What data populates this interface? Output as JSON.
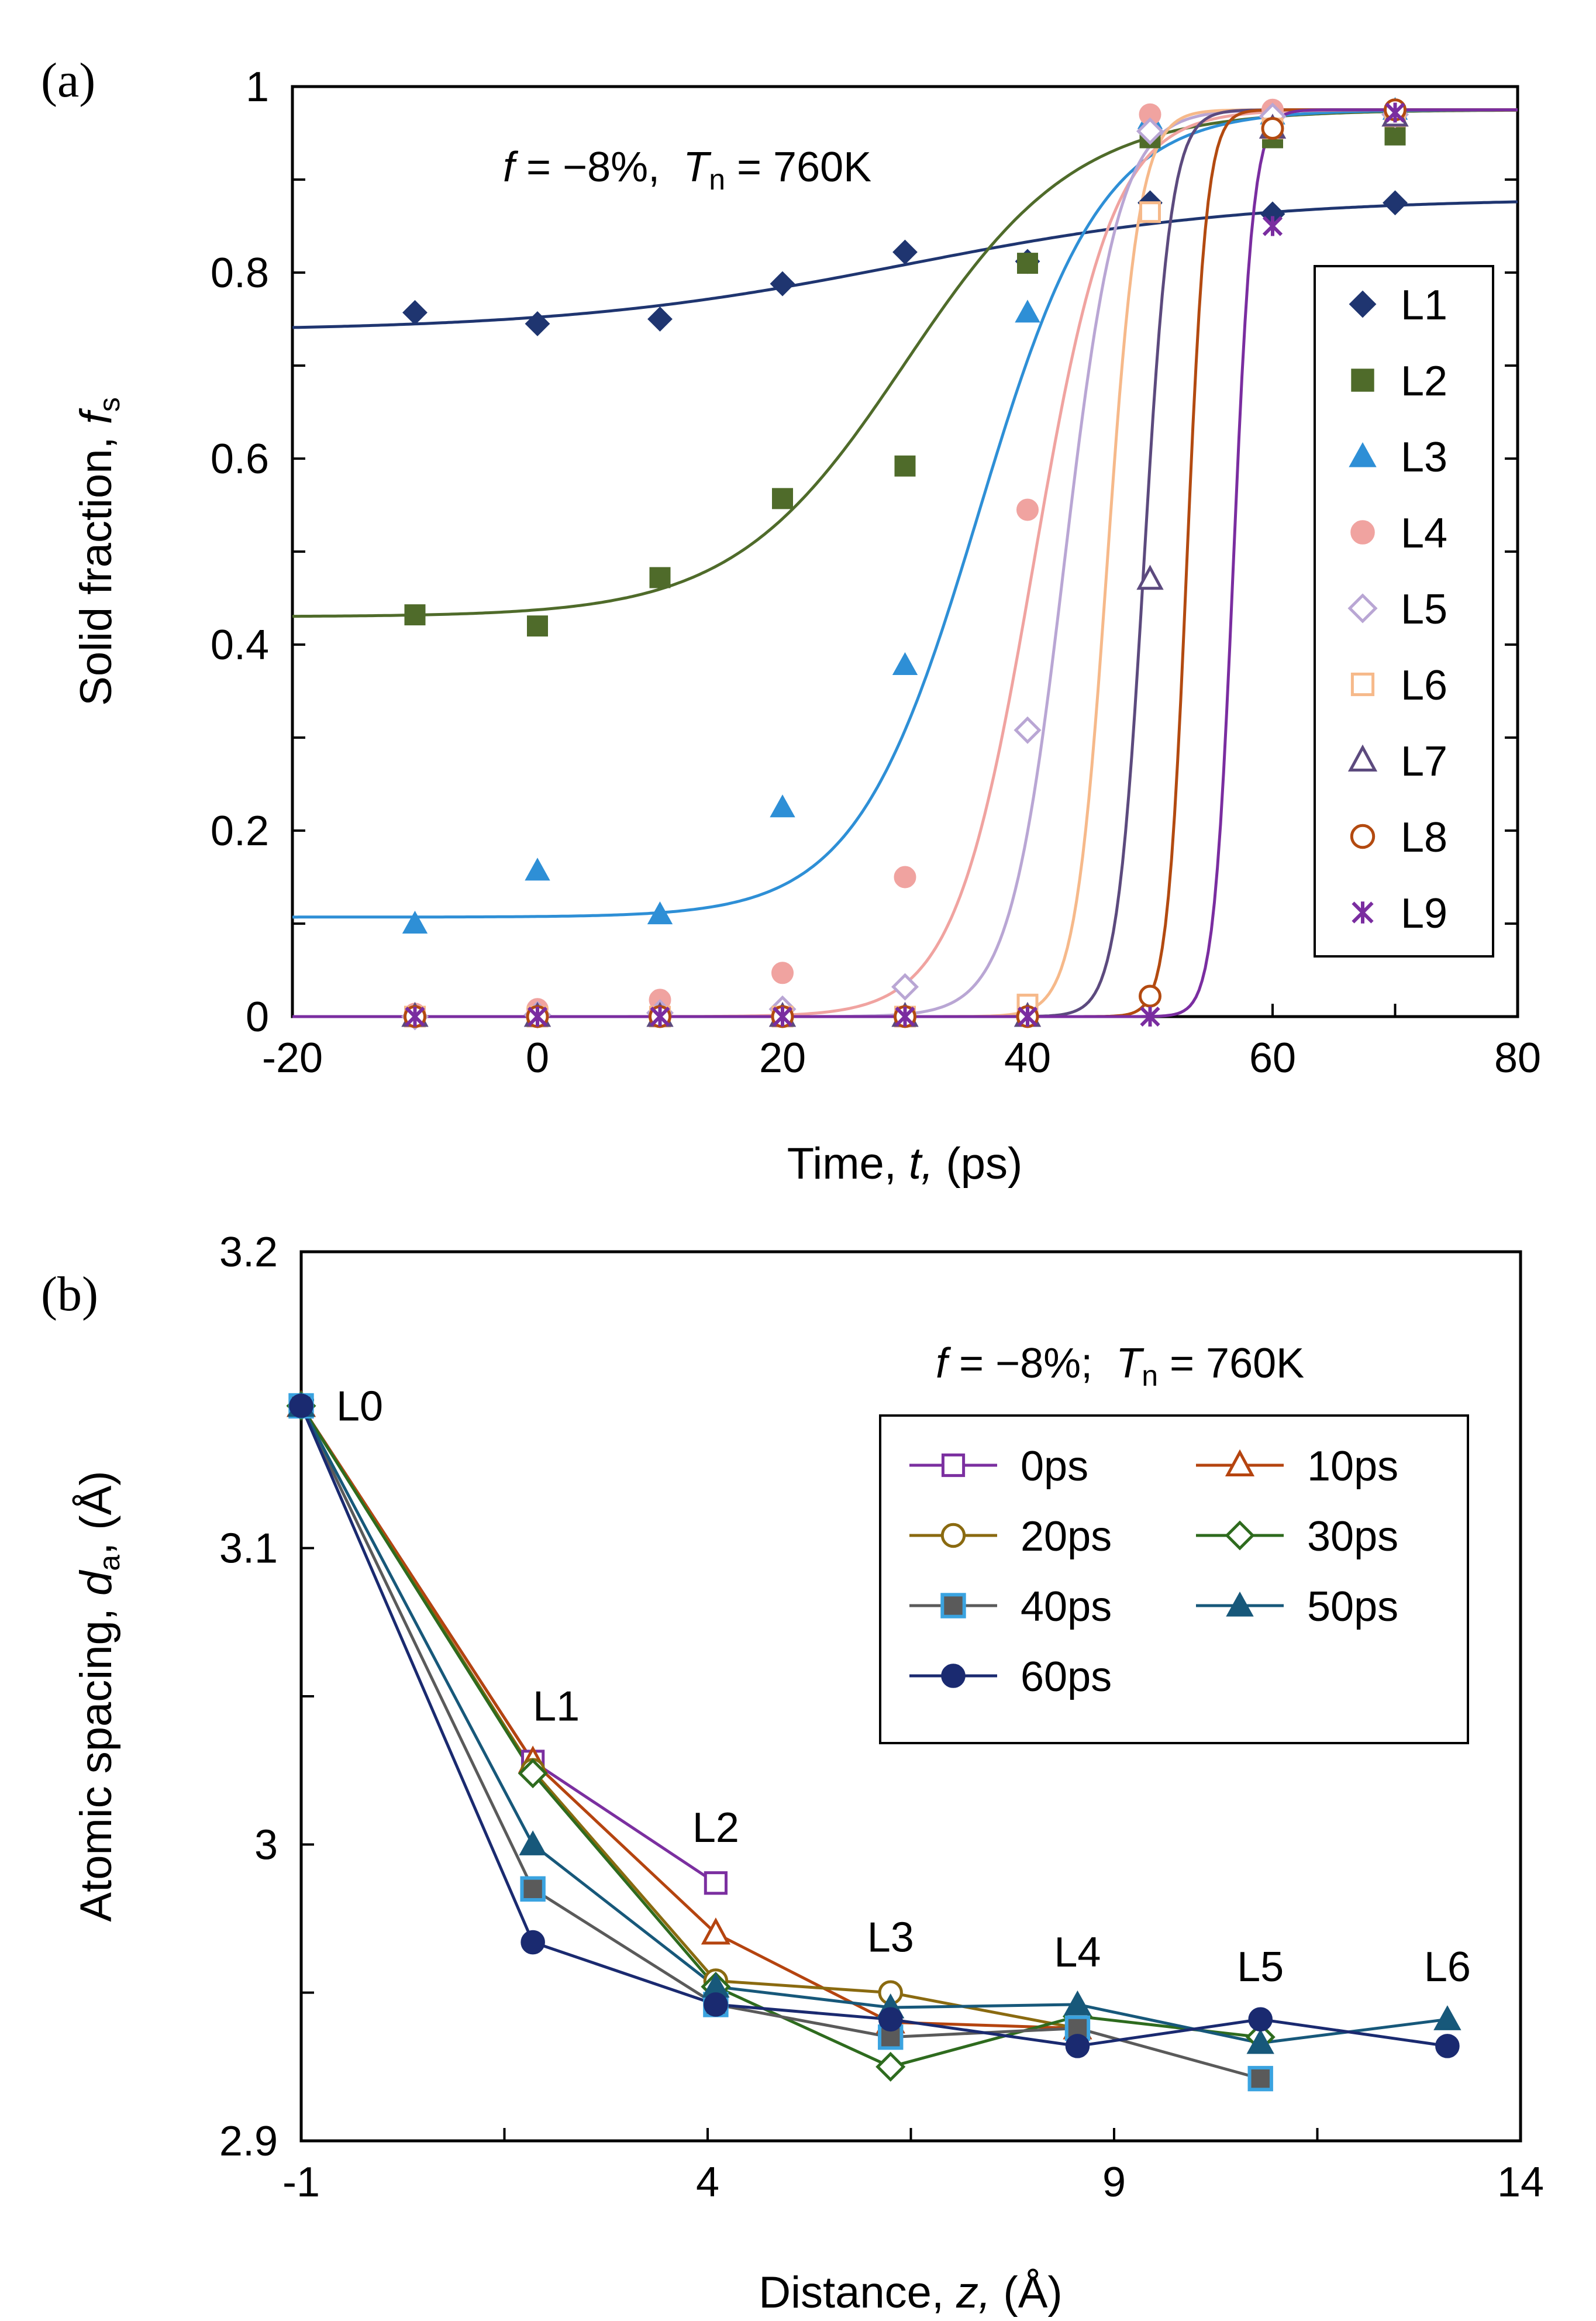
{
  "chart_data": [
    {
      "id": "a",
      "type": "scatter",
      "panel_label": "(a)",
      "annotation": {
        "f_symbol": "f",
        "f_text": " = −8%,  ",
        "t_symbol": "T",
        "t_sub": "n",
        "t_text": " = 760K"
      },
      "xlabel": {
        "prefix": "Time, ",
        "var": "t,",
        "suffix": " (ps)"
      },
      "ylabel": {
        "prefix": "Solid fraction, ",
        "var": "f",
        "sub": "s"
      },
      "xlim": [
        -20,
        80
      ],
      "ylim": [
        0,
        1
      ],
      "xticks": [
        "-20",
        "0",
        "20",
        "40",
        "60",
        "80"
      ],
      "yticks": [
        "0",
        "0.2",
        "0.4",
        "0.6",
        "0.8",
        "1"
      ],
      "legend_position": "right",
      "series": [
        {
          "name": "L1",
          "color": "#1f3570",
          "marker": "diamond",
          "x": [
            -10,
            0,
            10,
            20,
            30,
            40,
            50,
            60,
            70
          ],
          "values": [
            0.757,
            0.745,
            0.75,
            0.788,
            0.822,
            0.812,
            0.875,
            0.863,
            0.875
          ],
          "fit": {
            "lo": 0.737,
            "hi": 0.88,
            "t0": 30,
            "w": 14
          }
        },
        {
          "name": "L2",
          "color": "#4f6b2a",
          "marker": "square",
          "x": [
            -10,
            0,
            10,
            20,
            30,
            40,
            50,
            60,
            70
          ],
          "values": [
            0.432,
            0.42,
            0.472,
            0.557,
            0.592,
            0.81,
            0.945,
            0.945,
            0.948
          ],
          "fit": {
            "lo": 0.43,
            "hi": 0.975,
            "t0": 30,
            "w": 7
          }
        },
        {
          "name": "L3",
          "color": "#2e8fd6",
          "marker": "triangle",
          "x": [
            -10,
            0,
            10,
            20,
            30,
            40,
            50,
            60,
            70
          ],
          "values": [
            0.1,
            0.157,
            0.11,
            0.225,
            0.378,
            0.757,
            0.965,
            0.97,
            0.975
          ],
          "fit": {
            "lo": 0.107,
            "hi": 0.975,
            "t0": 36,
            "w": 5
          }
        },
        {
          "name": "L4",
          "color": "#f0a3a0",
          "marker": "circle",
          "x": [
            -10,
            0,
            10,
            20,
            30,
            40,
            50,
            60,
            70
          ],
          "values": [
            0.003,
            0.008,
            0.018,
            0.047,
            0.15,
            0.545,
            0.97,
            0.975,
            0.975
          ],
          "fit": {
            "lo": 0.0,
            "hi": 0.975,
            "t0": 40.5,
            "w": 3.2
          }
        },
        {
          "name": "L5",
          "color": "#b9a6d4",
          "marker": "diamond-open",
          "x": [
            -10,
            0,
            10,
            20,
            30,
            40,
            50,
            60,
            70
          ],
          "values": [
            0.0,
            0.002,
            0.004,
            0.008,
            0.032,
            0.308,
            0.952,
            0.968,
            0.97
          ],
          "fit": {
            "lo": 0.0,
            "hi": 0.975,
            "t0": 43,
            "w": 2.2
          }
        },
        {
          "name": "L6",
          "color": "#f6b98a",
          "marker": "square-open",
          "x": [
            -10,
            0,
            10,
            20,
            30,
            40,
            50,
            60,
            70
          ],
          "values": [
            0.0,
            0.0,
            0.0,
            0.0,
            0.0,
            0.013,
            0.865,
            0.955,
            0.968
          ],
          "fit": {
            "lo": 0.0,
            "hi": 0.975,
            "t0": 46.5,
            "w": 1.3
          }
        },
        {
          "name": "L7",
          "color": "#5c4a7e",
          "marker": "triangle-open",
          "x": [
            -10,
            0,
            10,
            20,
            30,
            40,
            50,
            60,
            70
          ],
          "values": [
            0.0,
            0.0,
            0.0,
            0.0,
            0.0,
            0.0,
            0.47,
            0.955,
            0.968
          ],
          "fit": {
            "lo": 0.0,
            "hi": 0.975,
            "t0": 49.5,
            "w": 1.1
          }
        },
        {
          "name": "L8",
          "color": "#b34a10",
          "marker": "circle-open",
          "x": [
            -10,
            0,
            10,
            20,
            30,
            40,
            50,
            60,
            70
          ],
          "values": [
            0.0,
            0.0,
            0.0,
            0.0,
            0.0,
            0.0,
            0.022,
            0.955,
            0.975
          ],
          "fit": {
            "lo": 0.0,
            "hi": 0.975,
            "t0": 53,
            "w": 0.8
          }
        },
        {
          "name": "L9",
          "color": "#7a2da0",
          "marker": "x",
          "x": [
            -10,
            0,
            10,
            20,
            30,
            40,
            50,
            60,
            70
          ],
          "values": [
            0.0,
            0.0,
            0.0,
            0.0,
            0.0,
            0.0,
            0.0,
            0.85,
            0.972
          ],
          "fit": {
            "lo": 0.0,
            "hi": 0.975,
            "t0": 56.8,
            "w": 0.8
          }
        }
      ]
    },
    {
      "id": "b",
      "type": "line",
      "panel_label": "(b)",
      "annotation": {
        "f_symbol": "f",
        "f_text": " = −8%;  ",
        "t_symbol": "T",
        "t_sub": "n",
        "t_text": " = 760K"
      },
      "xlabel": {
        "prefix": "Distance, ",
        "var": "z,",
        "suffix": " (Å)"
      },
      "ylabel": {
        "prefix": "Atomic spacing, ",
        "var": "d",
        "sub": "a",
        "suffix": ", (Å)"
      },
      "xlim": [
        -1,
        14
      ],
      "ylim": [
        2.9,
        3.2
      ],
      "xticks": [
        "-1",
        "4",
        "9",
        "14"
      ],
      "yticks": [
        "2.9",
        "3",
        "3.1",
        "3.2"
      ],
      "legend_position": "top-right",
      "layer_labels": [
        {
          "text": "L0",
          "x": -1.0,
          "y": 3.148
        },
        {
          "text": "L1",
          "x": 1.85,
          "y": 3.03
        },
        {
          "text": "L2",
          "x": 4.1,
          "y": 2.99
        },
        {
          "text": "L3",
          "x": 6.25,
          "y": 2.953
        },
        {
          "text": "L4",
          "x": 8.55,
          "y": 2.948
        },
        {
          "text": "L5",
          "x": 10.8,
          "y": 2.943
        },
        {
          "text": "L6",
          "x": 13.1,
          "y": 2.943
        }
      ],
      "series": [
        {
          "name": "0ps",
          "color": "#7b2fa0",
          "marker": "square-open",
          "x": [
            -1.0,
            1.85,
            4.1
          ],
          "values": [
            3.148,
            3.028,
            2.987
          ]
        },
        {
          "name": "10ps",
          "color": "#b5440f",
          "marker": "triangle-open",
          "x": [
            -1.0,
            1.85,
            4.1,
            6.25,
            8.55
          ],
          "values": [
            3.148,
            3.028,
            2.97,
            2.94,
            2.938
          ]
        },
        {
          "name": "20ps",
          "color": "#8a6a10",
          "marker": "circle-open",
          "x": [
            -1.0,
            1.85,
            4.1,
            6.25,
            8.55
          ],
          "values": [
            3.148,
            3.025,
            2.954,
            2.95,
            2.938
          ]
        },
        {
          "name": "30ps",
          "color": "#2e6b1e",
          "marker": "diamond-open",
          "x": [
            -1.0,
            1.85,
            4.1,
            6.25,
            8.55,
            10.8
          ],
          "values": [
            3.148,
            3.024,
            2.952,
            2.925,
            2.942,
            2.935
          ]
        },
        {
          "name": "40ps",
          "color": "#5a5a5a",
          "marker": "square-filled",
          "x": [
            -1.0,
            1.85,
            4.1,
            6.25,
            8.55,
            10.8
          ],
          "values": [
            3.148,
            2.985,
            2.946,
            2.935,
            2.938,
            2.921
          ]
        },
        {
          "name": "50ps",
          "color": "#17587a",
          "marker": "triangle",
          "x": [
            -1.0,
            1.85,
            4.1,
            6.25,
            8.55,
            10.8,
            13.1
          ],
          "values": [
            3.148,
            3.0,
            2.952,
            2.945,
            2.946,
            2.933,
            2.941
          ]
        },
        {
          "name": "60ps",
          "color": "#1a2a70",
          "marker": "circle",
          "x": [
            -1.0,
            1.85,
            4.1,
            6.25,
            8.55,
            10.8,
            13.1
          ],
          "values": [
            3.148,
            2.967,
            2.946,
            2.941,
            2.932,
            2.941,
            2.932
          ]
        }
      ]
    }
  ]
}
